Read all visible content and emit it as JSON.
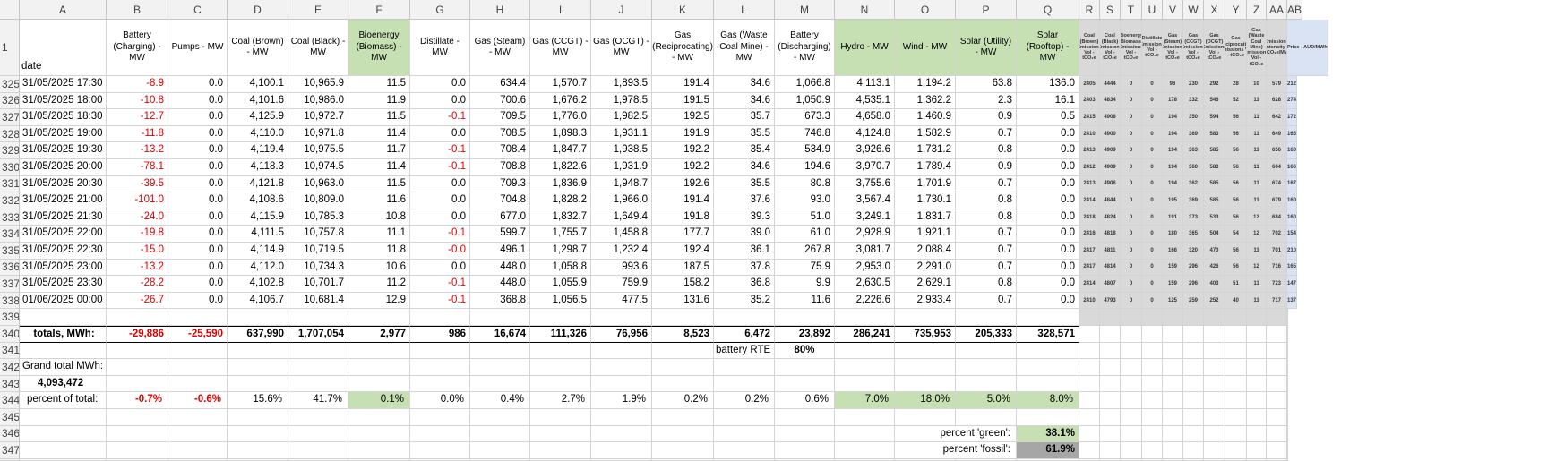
{
  "columns": [
    "A",
    "B",
    "C",
    "D",
    "E",
    "F",
    "G",
    "H",
    "I",
    "J",
    "K",
    "L",
    "M",
    "N",
    "O",
    "P",
    "Q",
    "R",
    "S",
    "T",
    "U",
    "V",
    "W",
    "X",
    "Y",
    "Z",
    "AA",
    "AB"
  ],
  "header_row_number": "1",
  "headers": [
    "date",
    "Battery (Charging) - MW",
    "Pumps - MW",
    "Coal (Brown) - MW",
    "Coal (Black) - MW",
    "Bioenergy (Biomass) - MW",
    "Distillate - MW",
    "Gas (Steam) - MW",
    "Gas (CCGT) - MW",
    "Gas (OCGT) - MW",
    "Gas (Reciprocating) - MW",
    "Gas (Waste Coal Mine) - MW",
    "Battery (Discharging) - MW",
    "Hydro - MW",
    "Wind - MW",
    "Solar (Utility) - MW",
    "Solar (Rooftop) - MW"
  ],
  "emission_headers": [
    "Coal (Brown) Emissions Vol - tCO₂e",
    "Coal (Black) Emissions Vol - tCO₂e",
    "Bioenergy (Biomass) Emissions Vol - tCO₂e",
    "Distillate Emissions Vol - tCO₂e",
    "Gas (Steam) Emissions Vol - tCO₂e",
    "Gas (CCGT) Emissions Vol - tCO₂e",
    "Gas (OCGT) Emissions Vol - tCO₂e",
    "Gas (Reciprocating) Emissions Vol - tCO₂e",
    "Gas (Waste Coal Mine) Emissions Vol - tCO₂e",
    "Emissions Intensity - kgCO₂e/MWh",
    "Price - AUD/MWh"
  ],
  "rows": [
    {
      "n": "325",
      "date": "31/05/2025 17:30",
      "v": [
        "-8.9",
        "0.0",
        "4,100.1",
        "10,965.9",
        "11.5",
        "0.0",
        "634.4",
        "1,570.7",
        "1,893.5",
        "191.4",
        "34.6",
        "1,066.8",
        "4,113.1",
        "1,194.2",
        "63.8",
        "136.0"
      ],
      "e": [
        "2405",
        "4444",
        "0",
        "0",
        "96",
        "230",
        "292",
        "28",
        "10",
        "579",
        "212"
      ]
    },
    {
      "n": "326",
      "date": "31/05/2025 18:00",
      "v": [
        "-10.8",
        "0.0",
        "4,101.6",
        "10,986.0",
        "11.9",
        "0.0",
        "700.6",
        "1,676.2",
        "1,978.5",
        "191.5",
        "34.6",
        "1,050.9",
        "4,535.1",
        "1,362.2",
        "2.3",
        "16.1"
      ],
      "e": [
        "2403",
        "4834",
        "0",
        "0",
        "178",
        "332",
        "546",
        "52",
        "11",
        "628",
        "274"
      ]
    },
    {
      "n": "327",
      "date": "31/05/2025 18:30",
      "v": [
        "-12.7",
        "0.0",
        "4,125.9",
        "10,972.7",
        "11.5",
        "-0.1",
        "709.5",
        "1,776.0",
        "1,982.5",
        "192.5",
        "35.7",
        "673.3",
        "4,658.0",
        "1,460.9",
        "0.9",
        "0.5"
      ],
      "e": [
        "2415",
        "4908",
        "0",
        "0",
        "194",
        "350",
        "594",
        "56",
        "11",
        "642",
        "172"
      ]
    },
    {
      "n": "328",
      "date": "31/05/2025 19:00",
      "v": [
        "-11.8",
        "0.0",
        "4,110.0",
        "10,971.8",
        "11.4",
        "0.0",
        "708.5",
        "1,898.3",
        "1,931.1",
        "191.9",
        "35.5",
        "746.8",
        "4,124.8",
        "1,582.9",
        "0.7",
        "0.0"
      ],
      "e": [
        "2410",
        "4900",
        "0",
        "0",
        "194",
        "369",
        "583",
        "56",
        "11",
        "649",
        "165"
      ]
    },
    {
      "n": "329",
      "date": "31/05/2025 19:30",
      "v": [
        "-13.2",
        "0.0",
        "4,119.4",
        "10,975.5",
        "11.7",
        "-0.1",
        "708.4",
        "1,847.7",
        "1,938.5",
        "192.2",
        "35.4",
        "534.9",
        "3,926.6",
        "1,731.2",
        "0.8",
        "0.0"
      ],
      "e": [
        "2413",
        "4909",
        "0",
        "0",
        "194",
        "363",
        "585",
        "56",
        "11",
        "656",
        "160"
      ]
    },
    {
      "n": "330",
      "date": "31/05/2025 20:00",
      "v": [
        "-78.1",
        "0.0",
        "4,118.3",
        "10,974.5",
        "11.4",
        "-0.1",
        "708.8",
        "1,822.6",
        "1,931.9",
        "192.2",
        "34.6",
        "194.6",
        "3,970.7",
        "1,789.4",
        "0.9",
        "0.0"
      ],
      "e": [
        "2412",
        "4909",
        "0",
        "0",
        "194",
        "360",
        "583",
        "56",
        "11",
        "664",
        "166"
      ]
    },
    {
      "n": "331",
      "date": "31/05/2025 20:30",
      "v": [
        "-39.5",
        "0.0",
        "4,121.8",
        "10,963.0",
        "11.5",
        "0.0",
        "709.3",
        "1,836.9",
        "1,948.7",
        "192.6",
        "35.5",
        "80.8",
        "3,755.6",
        "1,701.9",
        "0.7",
        "0.0"
      ],
      "e": [
        "2413",
        "4906",
        "0",
        "0",
        "194",
        "362",
        "585",
        "56",
        "11",
        "674",
        "167"
      ]
    },
    {
      "n": "332",
      "date": "31/05/2025 21:00",
      "v": [
        "-101.0",
        "0.0",
        "4,108.6",
        "10,809.0",
        "11.6",
        "0.0",
        "704.8",
        "1,828.2",
        "1,966.0",
        "191.4",
        "37.6",
        "93.0",
        "3,567.4",
        "1,730.1",
        "0.8",
        "0.0"
      ],
      "e": [
        "2414",
        "4844",
        "0",
        "0",
        "195",
        "369",
        "585",
        "56",
        "11",
        "679",
        "160"
      ]
    },
    {
      "n": "333",
      "date": "31/05/2025 21:30",
      "v": [
        "-24.0",
        "0.0",
        "4,115.9",
        "10,785.3",
        "10.8",
        "0.0",
        "677.0",
        "1,832.7",
        "1,649.4",
        "191.8",
        "39.3",
        "51.0",
        "3,249.1",
        "1,831.7",
        "0.8",
        "0.0"
      ],
      "e": [
        "2418",
        "4824",
        "0",
        "0",
        "191",
        "373",
        "533",
        "56",
        "12",
        "684",
        "160"
      ]
    },
    {
      "n": "334",
      "date": "31/05/2025 22:00",
      "v": [
        "-19.8",
        "0.0",
        "4,111.5",
        "10,757.8",
        "11.1",
        "-0.1",
        "599.7",
        "1,755.7",
        "1,458.8",
        "177.7",
        "39.0",
        "61.0",
        "2,928.9",
        "1,921.1",
        "0.7",
        "0.0"
      ],
      "e": [
        "2416",
        "4818",
        "0",
        "0",
        "180",
        "365",
        "504",
        "54",
        "12",
        "702",
        "154"
      ]
    },
    {
      "n": "335",
      "date": "31/05/2025 22:30",
      "v": [
        "-15.0",
        "0.0",
        "4,114.9",
        "10,719.5",
        "11.8",
        "-0.0",
        "496.1",
        "1,298.7",
        "1,232.4",
        "192.4",
        "36.1",
        "267.8",
        "3,081.7",
        "2,088.4",
        "0.7",
        "0.0"
      ],
      "e": [
        "2417",
        "4811",
        "0",
        "0",
        "166",
        "320",
        "470",
        "56",
        "11",
        "701",
        "210"
      ]
    },
    {
      "n": "336",
      "date": "31/05/2025 23:00",
      "v": [
        "-13.2",
        "0.0",
        "4,112.0",
        "10,734.3",
        "10.6",
        "0.0",
        "448.0",
        "1,058.8",
        "993.6",
        "187.5",
        "37.8",
        "75.9",
        "2,953.0",
        "2,291.0",
        "0.7",
        "0.0"
      ],
      "e": [
        "2417",
        "4814",
        "0",
        "0",
        "159",
        "296",
        "426",
        "56",
        "12",
        "716",
        "165"
      ]
    },
    {
      "n": "337",
      "date": "31/05/2025 23:30",
      "v": [
        "-28.2",
        "0.0",
        "4,102.8",
        "10,701.7",
        "11.2",
        "-0.1",
        "448.0",
        "1,055.9",
        "759.9",
        "158.2",
        "36.8",
        "9.9",
        "2,630.5",
        "2,629.1",
        "0.8",
        "0.0"
      ],
      "e": [
        "2414",
        "4807",
        "0",
        "0",
        "159",
        "296",
        "403",
        "51",
        "11",
        "723",
        "147"
      ]
    },
    {
      "n": "338",
      "date": "01/06/2025 00:00",
      "v": [
        "-26.7",
        "0.0",
        "4,106.7",
        "10,681.4",
        "12.9",
        "-0.1",
        "368.8",
        "1,056.5",
        "477.5",
        "131.6",
        "35.2",
        "11.6",
        "2,226.6",
        "2,933.4",
        "0.7",
        "0.0"
      ],
      "e": [
        "2410",
        "4793",
        "0",
        "0",
        "125",
        "259",
        "252",
        "40",
        "11",
        "717",
        "137"
      ]
    }
  ],
  "empty_row": "339",
  "totals": {
    "n": "340",
    "label": "totals, MWh:",
    "values": [
      "-29,886",
      "-25,590",
      "637,990",
      "1,707,054",
      "2,977",
      "986",
      "16,674",
      "111,326",
      "76,956",
      "8,523",
      "6,472",
      "23,892",
      "286,241",
      "735,953",
      "205,333",
      "328,571"
    ]
  },
  "battery": {
    "n": "341",
    "label": "battery RTE",
    "value": "80%"
  },
  "grand": {
    "n": "342",
    "label": "Grand total MWh:",
    "n2": "343",
    "value": "4,093,472"
  },
  "percent": {
    "n": "344",
    "label": "percent of total:",
    "values": [
      "-0.7%",
      "-0.6%",
      "15.6%",
      "41.7%",
      "0.1%",
      "0.0%",
      "0.4%",
      "2.7%",
      "1.9%",
      "0.2%",
      "0.2%",
      "0.6%",
      "7.0%",
      "18.0%",
      "5.0%",
      "8.0%"
    ]
  },
  "empty_row2": "345",
  "green_row": {
    "n": "346",
    "label": "percent 'green':",
    "value": "38.1%"
  },
  "fossil_row": {
    "n": "347",
    "label": "percent 'fossil':",
    "value": "61.9%"
  },
  "colors": {
    "green": "#c6e0b4",
    "negative": "#e00000",
    "gray": "#d9d9d9",
    "lightblue": "#dae3f3",
    "darkgray": "#a6a6a6"
  }
}
